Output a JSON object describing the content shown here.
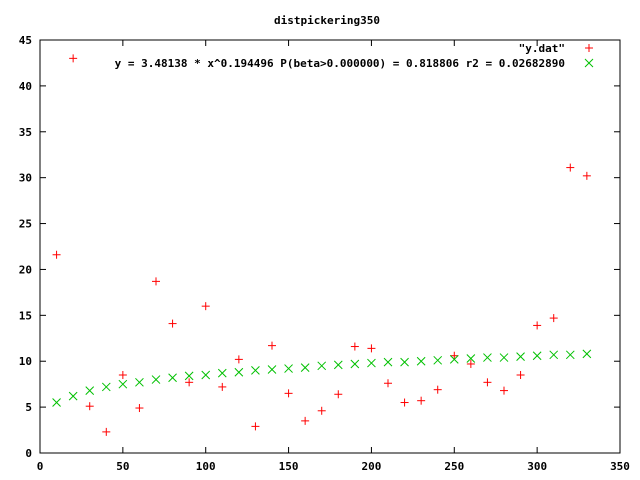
{
  "chart_data": {
    "type": "scatter",
    "title": "distpickering350",
    "xlabel": "",
    "ylabel": "",
    "xlim": [
      0,
      350
    ],
    "ylim": [
      0,
      45
    ],
    "x_ticks": [
      0,
      50,
      100,
      150,
      200,
      250,
      300,
      350
    ],
    "y_ticks": [
      0,
      5,
      10,
      15,
      20,
      25,
      30,
      35,
      40,
      45
    ],
    "grid": false,
    "legend_position": "top-right",
    "series": [
      {
        "name": "\"y.dat\"",
        "marker": "plus",
        "color": "#ff0000",
        "points": [
          [
            10,
            21.6
          ],
          [
            20,
            43.0
          ],
          [
            30,
            5.1
          ],
          [
            40,
            2.3
          ],
          [
            50,
            8.5
          ],
          [
            60,
            4.9
          ],
          [
            70,
            18.7
          ],
          [
            80,
            14.1
          ],
          [
            90,
            7.7
          ],
          [
            100,
            16.0
          ],
          [
            110,
            7.2
          ],
          [
            120,
            10.2
          ],
          [
            130,
            2.9
          ],
          [
            140,
            11.7
          ],
          [
            150,
            6.5
          ],
          [
            160,
            3.5
          ],
          [
            170,
            4.6
          ],
          [
            180,
            6.4
          ],
          [
            190,
            11.6
          ],
          [
            200,
            11.4
          ],
          [
            210,
            7.6
          ],
          [
            220,
            5.5
          ],
          [
            230,
            5.7
          ],
          [
            240,
            6.9
          ],
          [
            250,
            10.6
          ],
          [
            260,
            9.7
          ],
          [
            270,
            7.7
          ],
          [
            280,
            6.8
          ],
          [
            290,
            8.5
          ],
          [
            300,
            13.9
          ],
          [
            310,
            14.7
          ],
          [
            320,
            31.1
          ],
          [
            330,
            30.2
          ]
        ]
      },
      {
        "name": "y = 3.48138 * x^0.194496 P(beta>0.000000) = 0.818806 r2 = 0.02682890",
        "marker": "cross",
        "color": "#00c000",
        "points": [
          [
            10,
            5.5
          ],
          [
            20,
            6.2
          ],
          [
            30,
            6.8
          ],
          [
            40,
            7.2
          ],
          [
            50,
            7.5
          ],
          [
            60,
            7.7
          ],
          [
            70,
            8.0
          ],
          [
            80,
            8.2
          ],
          [
            90,
            8.4
          ],
          [
            100,
            8.5
          ],
          [
            110,
            8.7
          ],
          [
            120,
            8.8
          ],
          [
            130,
            9.0
          ],
          [
            140,
            9.1
          ],
          [
            150,
            9.2
          ],
          [
            160,
            9.3
          ],
          [
            170,
            9.5
          ],
          [
            180,
            9.6
          ],
          [
            190,
            9.7
          ],
          [
            200,
            9.8
          ],
          [
            210,
            9.9
          ],
          [
            220,
            9.9
          ],
          [
            230,
            10.0
          ],
          [
            240,
            10.1
          ],
          [
            250,
            10.2
          ],
          [
            260,
            10.3
          ],
          [
            270,
            10.4
          ],
          [
            280,
            10.4
          ],
          [
            290,
            10.5
          ],
          [
            300,
            10.6
          ],
          [
            310,
            10.7
          ],
          [
            320,
            10.7
          ],
          [
            330,
            10.8
          ]
        ]
      }
    ]
  }
}
